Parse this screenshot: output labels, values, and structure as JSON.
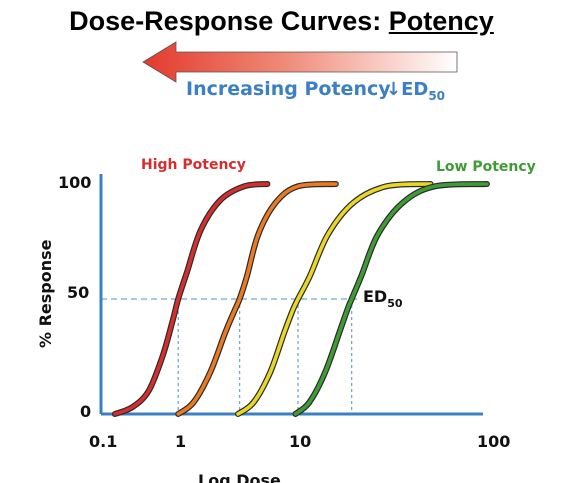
{
  "title_main": "Dose-Response Curves: ",
  "title_emph": "Potency",
  "arrow": {
    "label": "Increasing Potency",
    "ed_symbol": "↓ED",
    "ed_sub": "50"
  },
  "colors": {
    "high": "#d62d2d",
    "orange": "#ec7a22",
    "yellow": "#e9d625",
    "low": "#3f9c35",
    "axis": "#3b7fc4",
    "guide": "#6fa8dc"
  },
  "chart_data": {
    "type": "line",
    "xscale": "log",
    "xlim": [
      0.1,
      100
    ],
    "ylim": [
      0,
      100
    ],
    "xlabel": "Log Dose",
    "ylabel": "% Response",
    "xticks": [
      "0.1",
      "1",
      "10",
      "100"
    ],
    "yticks": [
      "0",
      "50",
      "100"
    ],
    "ed_label": "ED",
    "ed_sub": "50",
    "series": [
      {
        "name": "High Potency",
        "color": "#d62d2d",
        "ed50": 0.95,
        "x": [
          0.15,
          0.25,
          0.4,
          0.6,
          0.8,
          0.95,
          1.15,
          1.5,
          2.2,
          3.5,
          5.5
        ],
        "y": [
          0,
          3,
          10,
          25,
          40,
          50,
          62,
          80,
          93,
          99,
          100
        ]
      },
      {
        "name": "",
        "color": "#ec7a22",
        "ed50": 3.2,
        "x": [
          0.95,
          1.3,
          1.8,
          2.4,
          2.9,
          3.2,
          3.7,
          4.6,
          6.5,
          10,
          16
        ],
        "y": [
          0,
          5,
          18,
          35,
          45,
          50,
          60,
          78,
          92,
          99,
          100
        ]
      },
      {
        "name": "",
        "color": "#e9d625",
        "ed50": 10,
        "x": [
          3.1,
          4.2,
          5.8,
          7.6,
          9.0,
          10,
          11.6,
          14.5,
          20,
          30,
          52
        ],
        "y": [
          0,
          5,
          18,
          35,
          45,
          50,
          60,
          78,
          92,
          99,
          100
        ]
      },
      {
        "name": "Low Potency",
        "color": "#3f9c35",
        "ed50": 19.5,
        "x": [
          9.5,
          11.5,
          14,
          17,
          18.6,
          19.5,
          22,
          27,
          37,
          55,
          105
        ],
        "y": [
          0,
          5,
          18,
          37,
          46,
          50,
          60,
          78,
          92,
          99,
          100
        ]
      }
    ]
  }
}
